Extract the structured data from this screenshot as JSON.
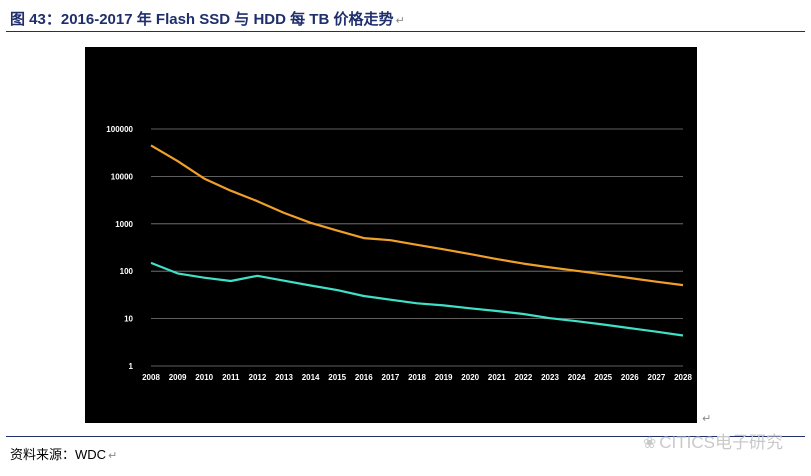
{
  "figure": {
    "title": "图 43：2016-2017 年 Flash SSD 与 HDD 每 TB 价格走势",
    "paragraph_mark": "↵",
    "source": "资料来源：WDC",
    "watermark": "CITICS电子研究"
  },
  "colors": {
    "title": "#1f2f6b",
    "chart_bg": "#000000",
    "grid": "#7f7f7f",
    "ssd_line": "#f0a028",
    "hdd_line": "#40e0c8"
  },
  "chart_data": {
    "type": "line",
    "title": "",
    "xlabel": "",
    "ylabel": "",
    "yscale": "log",
    "ylim": [
      1,
      100000
    ],
    "yticks": [
      1,
      10,
      100,
      1000,
      10000,
      100000
    ],
    "ytick_labels": [
      "1",
      "10",
      "100",
      "1000",
      "10000",
      "100000"
    ],
    "grid": true,
    "legend": "none",
    "x": [
      "2008",
      "2009",
      "2010",
      "2011",
      "2012",
      "2013",
      "2014",
      "2015",
      "2016",
      "2017",
      "2018",
      "2019",
      "2020",
      "2021",
      "2022",
      "2023",
      "2024",
      "2025",
      "2026",
      "2027",
      "2028"
    ],
    "series": [
      {
        "name": "Flash SSD",
        "color": "#f0a028",
        "values": [
          45000,
          21000,
          9000,
          5000,
          3000,
          1700,
          1050,
          720,
          500,
          450,
          360,
          290,
          230,
          180,
          145,
          120,
          102,
          86,
          72,
          60,
          51
        ]
      },
      {
        "name": "HDD",
        "color": "#40e0c8",
        "values": [
          150,
          90,
          73,
          62,
          80,
          63,
          50,
          40,
          30,
          25,
          21,
          19,
          16.5,
          14.5,
          12.5,
          10.2,
          8.8,
          7.5,
          6.3,
          5.3,
          4.4
        ]
      }
    ]
  }
}
